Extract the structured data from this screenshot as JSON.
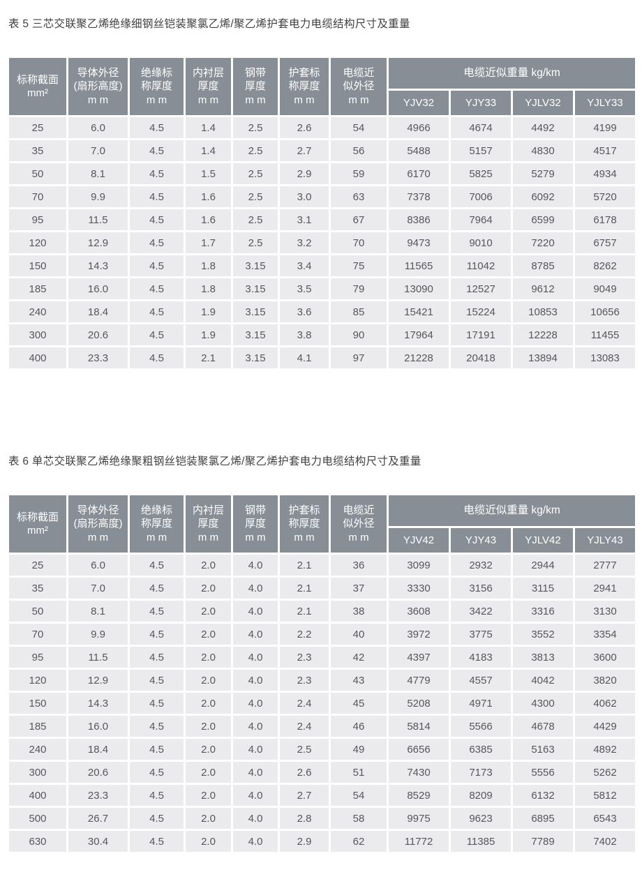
{
  "tables": [
    {
      "title": "表 5 三芯交联聚乙烯绝缘细钢丝铠装聚氯乙烯/聚乙烯护套电力电缆结构尺寸及重量",
      "headers": [
        "标称截面\nmm²",
        "导体外径\n(扇形高度)\nm m",
        "绝缘标\n称厚度\nm m",
        "内衬层\n厚度\nm m",
        "钢带\n厚度\nm m",
        "护套标\n称厚度\nm m",
        "电缆近\n似外径\nm m"
      ],
      "weight_group": "电缆近似重量 kg/km",
      "weight_models": [
        "YJV32",
        "YJY33",
        "YJLV32",
        "YJLY33"
      ],
      "rows": [
        [
          "25",
          "6.0",
          "4.5",
          "1.4",
          "2.5",
          "2.6",
          "54",
          "4966",
          "4674",
          "4492",
          "4199"
        ],
        [
          "35",
          "7.0",
          "4.5",
          "1.4",
          "2.5",
          "2.7",
          "56",
          "5488",
          "5157",
          "4830",
          "4517"
        ],
        [
          "50",
          "8.1",
          "4.5",
          "1.5",
          "2.5",
          "2.9",
          "59",
          "6170",
          "5825",
          "5279",
          "4934"
        ],
        [
          "70",
          "9.9",
          "4.5",
          "1.6",
          "2.5",
          "3.0",
          "63",
          "7378",
          "7006",
          "6092",
          "5720"
        ],
        [
          "95",
          "11.5",
          "4.5",
          "1.6",
          "2.5",
          "3.1",
          "67",
          "8386",
          "7964",
          "6599",
          "6178"
        ],
        [
          "120",
          "12.9",
          "4.5",
          "1.7",
          "2.5",
          "3.2",
          "70",
          "9473",
          "9010",
          "7220",
          "6757"
        ],
        [
          "150",
          "14.3",
          "4.5",
          "1.8",
          "3.15",
          "3.4",
          "75",
          "11565",
          "11042",
          "8785",
          "8262"
        ],
        [
          "185",
          "16.0",
          "4.5",
          "1.8",
          "3.15",
          "3.5",
          "79",
          "13090",
          "12527",
          "9612",
          "9049"
        ],
        [
          "240",
          "18.4",
          "4.5",
          "1.9",
          "3.15",
          "3.6",
          "85",
          "15421",
          "15224",
          "10853",
          "10656"
        ],
        [
          "300",
          "20.6",
          "4.5",
          "1.9",
          "3.15",
          "3.8",
          "90",
          "17964",
          "17191",
          "12228",
          "11455"
        ],
        [
          "400",
          "23.3",
          "4.5",
          "2.1",
          "3.15",
          "4.1",
          "97",
          "21228",
          "20418",
          "13894",
          "13083"
        ]
      ]
    },
    {
      "title": "表 6  单芯交联聚乙烯绝缘聚粗钢丝铠装聚氯乙烯/聚乙烯护套电力电缆结构尺寸及重量",
      "headers": [
        "标称截面\nmm²",
        "导体外径\n(扇形高度)\nm m",
        "绝缘标\n称厚度\nm m",
        "内衬层\n厚度\nm m",
        "钢带\n厚度\nm m",
        "护套标\n称厚度\nm m",
        "电缆近\n似外径\nm m"
      ],
      "weight_group": "电缆近似重量 kg/km",
      "weight_models": [
        "YJV42",
        "YJY43",
        "YJLV42",
        "YJLY43"
      ],
      "rows": [
        [
          "25",
          "6.0",
          "4.5",
          "2.0",
          "4.0",
          "2.1",
          "36",
          "3099",
          "2932",
          "2944",
          "2777"
        ],
        [
          "35",
          "7.0",
          "4.5",
          "2.0",
          "4.0",
          "2.1",
          "37",
          "3330",
          "3156",
          "3115",
          "2941"
        ],
        [
          "50",
          "8.1",
          "4.5",
          "2.0",
          "4.0",
          "2.1",
          "38",
          "3608",
          "3422",
          "3316",
          "3130"
        ],
        [
          "70",
          "9.9",
          "4.5",
          "2.0",
          "4.0",
          "2.2",
          "40",
          "3972",
          "3775",
          "3552",
          "3354"
        ],
        [
          "95",
          "11.5",
          "4.5",
          "2.0",
          "4.0",
          "2.3",
          "42",
          "4397",
          "4183",
          "3813",
          "3600"
        ],
        [
          "120",
          "12.9",
          "4.5",
          "2.0",
          "4.0",
          "2.3",
          "43",
          "4779",
          "4557",
          "4042",
          "3820"
        ],
        [
          "150",
          "14.3",
          "4.5",
          "2.0",
          "4.0",
          "2.4",
          "45",
          "5208",
          "4971",
          "4300",
          "4062"
        ],
        [
          "185",
          "16.0",
          "4.5",
          "2.0",
          "4.0",
          "2.4",
          "46",
          "5814",
          "5566",
          "4678",
          "4429"
        ],
        [
          "240",
          "18.4",
          "4.5",
          "2.0",
          "4.0",
          "2.5",
          "49",
          "6656",
          "6385",
          "5163",
          "4892"
        ],
        [
          "300",
          "20.6",
          "4.5",
          "2.0",
          "4.0",
          "2.6",
          "51",
          "7430",
          "7173",
          "5556",
          "5262"
        ],
        [
          "400",
          "23.3",
          "4.5",
          "2.0",
          "4.0",
          "2.7",
          "54",
          "8529",
          "8209",
          "6132",
          "5812"
        ],
        [
          "500",
          "26.7",
          "4.5",
          "2.0",
          "4.0",
          "2.8",
          "58",
          "9975",
          "9623",
          "6895",
          "6543"
        ],
        [
          "630",
          "30.4",
          "4.5",
          "2.0",
          "4.0",
          "2.9",
          "62",
          "11772",
          "11385",
          "7789",
          "7402"
        ]
      ]
    }
  ],
  "colors": {
    "header_bg": "#878e96",
    "header_text": "#ffffff",
    "row_bg": "#ebebed",
    "cell_text": "#55575c",
    "title_text": "#404040"
  }
}
